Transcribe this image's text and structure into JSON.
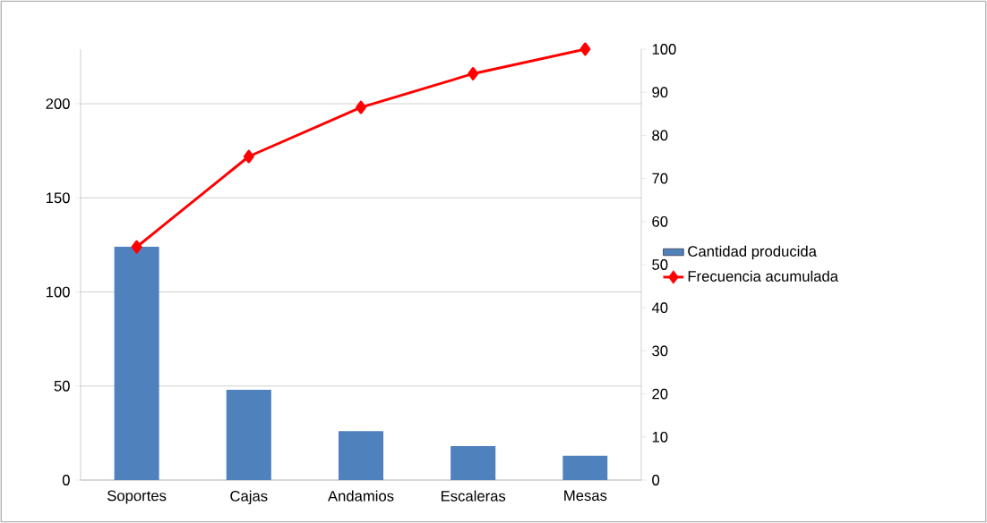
{
  "chart_data": {
    "type": "bar",
    "categories": [
      "Soportes",
      "Cajas",
      "Andamios",
      "Escaleras",
      "Mesas"
    ],
    "series": [
      {
        "name": "Cantidad producida",
        "color": "#4f81bd",
        "values": [
          124,
          48,
          26,
          18,
          13
        ]
      },
      {
        "name": "Frecuencia acumulada",
        "type": "line",
        "axis": "y2",
        "color": "#ff0000",
        "values": [
          54.1,
          75.1,
          86.5,
          94.3,
          100
        ]
      }
    ],
    "ylim": [
      0,
      229
    ],
    "yticks": [
      0,
      50,
      100,
      150,
      200
    ],
    "y2lim": [
      0,
      100
    ],
    "y2ticks": [
      0,
      10,
      20,
      30,
      40,
      50,
      60,
      70,
      80,
      90,
      100
    ],
    "grid": "y",
    "legend": "right",
    "marker": "diamond",
    "line_style": "solid"
  }
}
